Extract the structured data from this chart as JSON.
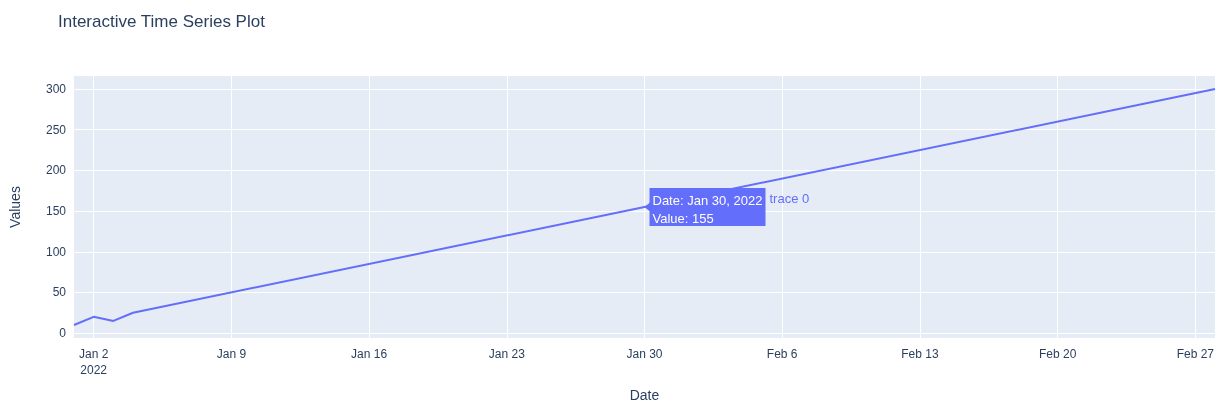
{
  "chart_data": {
    "type": "line",
    "title": "Interactive Time Series Plot",
    "xlabel": "Date",
    "ylabel": "Values",
    "x": [
      "2022-01-01",
      "2022-01-02",
      "2022-01-03",
      "2022-01-04",
      "2022-01-30",
      "2022-02-28"
    ],
    "series": [
      {
        "color": "#636efa",
        "values": [
          10,
          20,
          15,
          25,
          155,
          300
        ]
      }
    ],
    "xlim": [
      "2022-01-01",
      "2022-02-28"
    ],
    "xticks": [
      {
        "value": "2022-01-02",
        "label": "Jan 2\n2022"
      },
      {
        "value": "2022-01-09",
        "label": "Jan 9"
      },
      {
        "value": "2022-01-16",
        "label": "Jan 16"
      },
      {
        "value": "2022-01-23",
        "label": "Jan 23"
      },
      {
        "value": "2022-01-30",
        "label": "Jan 30"
      },
      {
        "value": "2022-02-06",
        "label": "Feb 6"
      },
      {
        "value": "2022-02-13",
        "label": "Feb 13"
      },
      {
        "value": "2022-02-20",
        "label": "Feb 20"
      },
      {
        "value": "2022-02-27",
        "label": "Feb 27"
      }
    ],
    "ylim": [
      -6,
      316
    ],
    "yticks": [
      0,
      50,
      100,
      150,
      200,
      250,
      300
    ],
    "grid": true,
    "marker": "none",
    "line_style": "solid",
    "annotations": [
      {
        "text": "Date: Jan 30, 2022\nValue: 155",
        "x": "2022-01-30",
        "y": 155
      },
      "trace 0"
    ]
  }
}
